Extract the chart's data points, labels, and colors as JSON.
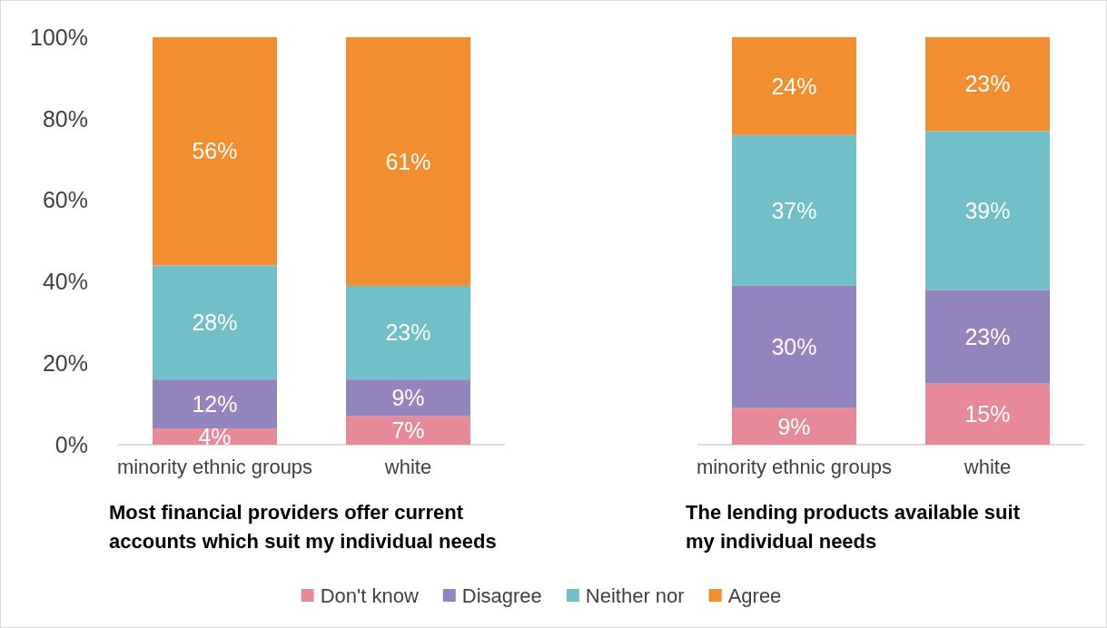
{
  "chart_data": [
    {
      "type": "bar",
      "stacked": true,
      "title": "Most financial providers offer current accounts which suit my individual needs",
      "categories": [
        "minority ethnic groups",
        "white"
      ],
      "ylim": [
        0,
        100
      ],
      "yticks": [
        {
          "value": 0,
          "label": "0%"
        },
        {
          "value": 20,
          "label": "20%"
        },
        {
          "value": 40,
          "label": "40%"
        },
        {
          "value": 60,
          "label": "60%"
        },
        {
          "value": 80,
          "label": "80%"
        },
        {
          "value": 100,
          "label": "100%"
        }
      ],
      "legend": "bottom",
      "series": [
        {
          "name": "Don't know",
          "color": "#e8899a",
          "values": [
            4,
            7
          ],
          "value_labels": [
            "4%",
            "7%"
          ]
        },
        {
          "name": "Disagree",
          "color": "#9285bd",
          "values": [
            12,
            9
          ],
          "value_labels": [
            "12%",
            "9%"
          ]
        },
        {
          "name": "Neither nor",
          "color": "#71bfc9",
          "values": [
            28,
            23
          ],
          "value_labels": [
            "28%",
            "23%"
          ]
        },
        {
          "name": "Agree",
          "color": "#f28e2f",
          "values": [
            56,
            61
          ],
          "value_labels": [
            "56%",
            "61%"
          ]
        }
      ]
    },
    {
      "type": "bar",
      "stacked": true,
      "title": "The lending products available suit my individual needs",
      "categories": [
        "minority ethnic groups",
        "white"
      ],
      "ylim": [
        0,
        100
      ],
      "tick_labels": "x",
      "series": [
        {
          "color": "#e8899a",
          "values": [
            9,
            15
          ],
          "value_labels": [
            "9%",
            "15%"
          ]
        },
        {
          "color": "#9285bd",
          "values": [
            30,
            23
          ],
          "value_labels": [
            "30%",
            "23%"
          ]
        },
        {
          "color": "#71bfc9",
          "values": [
            37,
            39
          ],
          "value_labels": [
            "37%",
            "39%"
          ]
        },
        {
          "color": "#f28e2f",
          "values": [
            24,
            23
          ],
          "value_labels": [
            "24%",
            "23%"
          ]
        }
      ]
    }
  ]
}
